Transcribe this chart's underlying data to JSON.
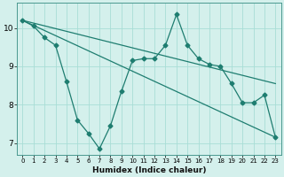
{
  "title": "",
  "xlabel": "Humidex (Indice chaleur)",
  "background_color": "#d4f0ec",
  "grid_color": "#a8ddd6",
  "line_color": "#1e7d70",
  "xlim": [
    -0.5,
    23.5
  ],
  "ylim": [
    6.7,
    10.65
  ],
  "yticks": [
    7,
    8,
    9,
    10
  ],
  "xticks": [
    0,
    1,
    2,
    3,
    4,
    5,
    6,
    7,
    8,
    9,
    10,
    11,
    12,
    13,
    14,
    15,
    16,
    17,
    18,
    19,
    20,
    21,
    22,
    23
  ],
  "data_x": [
    0,
    1,
    2,
    3,
    4,
    5,
    6,
    7,
    8,
    9,
    10,
    11,
    12,
    13,
    14,
    15,
    16,
    17,
    18,
    19,
    20,
    21,
    22,
    23
  ],
  "data_y": [
    10.2,
    10.05,
    9.75,
    9.55,
    8.6,
    7.6,
    7.25,
    6.85,
    7.45,
    8.35,
    9.15,
    9.2,
    9.2,
    9.55,
    10.35,
    9.55,
    9.2,
    9.05,
    9.0,
    8.55,
    8.05,
    8.05,
    8.25,
    7.15
  ],
  "trend1_x": [
    0,
    23
  ],
  "trend1_y": [
    10.2,
    8.55
  ],
  "trend2_x": [
    0,
    23
  ],
  "trend2_y": [
    10.2,
    7.15
  ]
}
